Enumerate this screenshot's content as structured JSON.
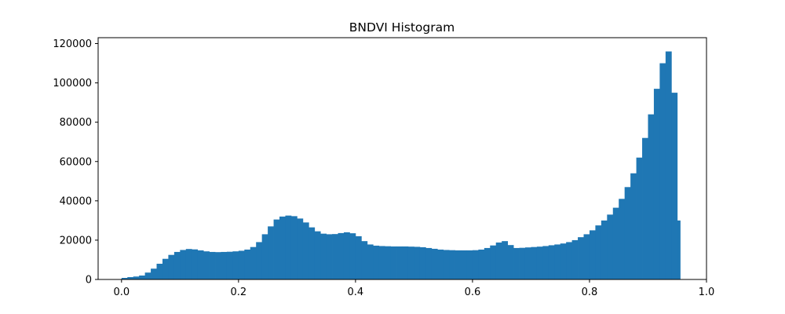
{
  "chart_data": {
    "type": "bar",
    "title": "BNDVI Histogram",
    "xlabel": "",
    "ylabel": "",
    "xlim": [
      -0.04,
      1.0
    ],
    "ylim": [
      0,
      123000
    ],
    "grid": false,
    "legend": "none",
    "bar_color": "#1f77b4",
    "x_ticks": [
      0.0,
      0.2,
      0.4,
      0.6,
      0.8,
      1.0
    ],
    "x_tick_labels": [
      "0.0",
      "0.2",
      "0.4",
      "0.6",
      "0.8",
      "1.0"
    ],
    "y_ticks": [
      0,
      20000,
      40000,
      60000,
      80000,
      100000,
      120000
    ],
    "y_tick_labels": [
      "0",
      "20000",
      "40000",
      "60000",
      "80000",
      "100000",
      "120000"
    ],
    "x": [
      0.01,
      0.02,
      0.03,
      0.04,
      0.05,
      0.06,
      0.07,
      0.08,
      0.09,
      0.1,
      0.11,
      0.12,
      0.13,
      0.14,
      0.15,
      0.16,
      0.17,
      0.18,
      0.19,
      0.2,
      0.21,
      0.22,
      0.23,
      0.24,
      0.25,
      0.26,
      0.27,
      0.28,
      0.29,
      0.3,
      0.31,
      0.32,
      0.33,
      0.34,
      0.35,
      0.36,
      0.37,
      0.38,
      0.39,
      0.4,
      0.41,
      0.42,
      0.43,
      0.44,
      0.45,
      0.46,
      0.47,
      0.48,
      0.49,
      0.5,
      0.51,
      0.52,
      0.53,
      0.54,
      0.55,
      0.56,
      0.57,
      0.58,
      0.59,
      0.6,
      0.61,
      0.62,
      0.63,
      0.64,
      0.65,
      0.66,
      0.67,
      0.68,
      0.69,
      0.7,
      0.71,
      0.72,
      0.73,
      0.74,
      0.75,
      0.76,
      0.77,
      0.78,
      0.79,
      0.8,
      0.81,
      0.82,
      0.83,
      0.84,
      0.85,
      0.86,
      0.87,
      0.88,
      0.89,
      0.9,
      0.91,
      0.92,
      0.93,
      0.94,
      0.95,
      0.955
    ],
    "values": [
      800,
      1200,
      1500,
      2000,
      3500,
      5500,
      8000,
      10500,
      12500,
      14000,
      15000,
      15500,
      15300,
      14800,
      14300,
      14000,
      13900,
      14000,
      14100,
      14300,
      14600,
      15200,
      16500,
      19000,
      23000,
      27000,
      30500,
      32000,
      32500,
      32200,
      31000,
      29000,
      26500,
      24500,
      23300,
      23000,
      23100,
      23600,
      24000,
      23500,
      22000,
      19500,
      17800,
      17200,
      17000,
      16900,
      16800,
      16800,
      16800,
      16700,
      16600,
      16400,
      16000,
      15600,
      15200,
      15000,
      14900,
      14800,
      14800,
      14800,
      14900,
      15200,
      16000,
      17300,
      18800,
      19500,
      17500,
      16000,
      16100,
      16300,
      16500,
      16700,
      17000,
      17400,
      17800,
      18300,
      19000,
      20000,
      21500,
      23000,
      25000,
      27500,
      30000,
      33000,
      36500,
      41000,
      47000,
      54000,
      62000,
      72000,
      84000,
      97000,
      110000,
      116000,
      95000,
      30000
    ]
  }
}
